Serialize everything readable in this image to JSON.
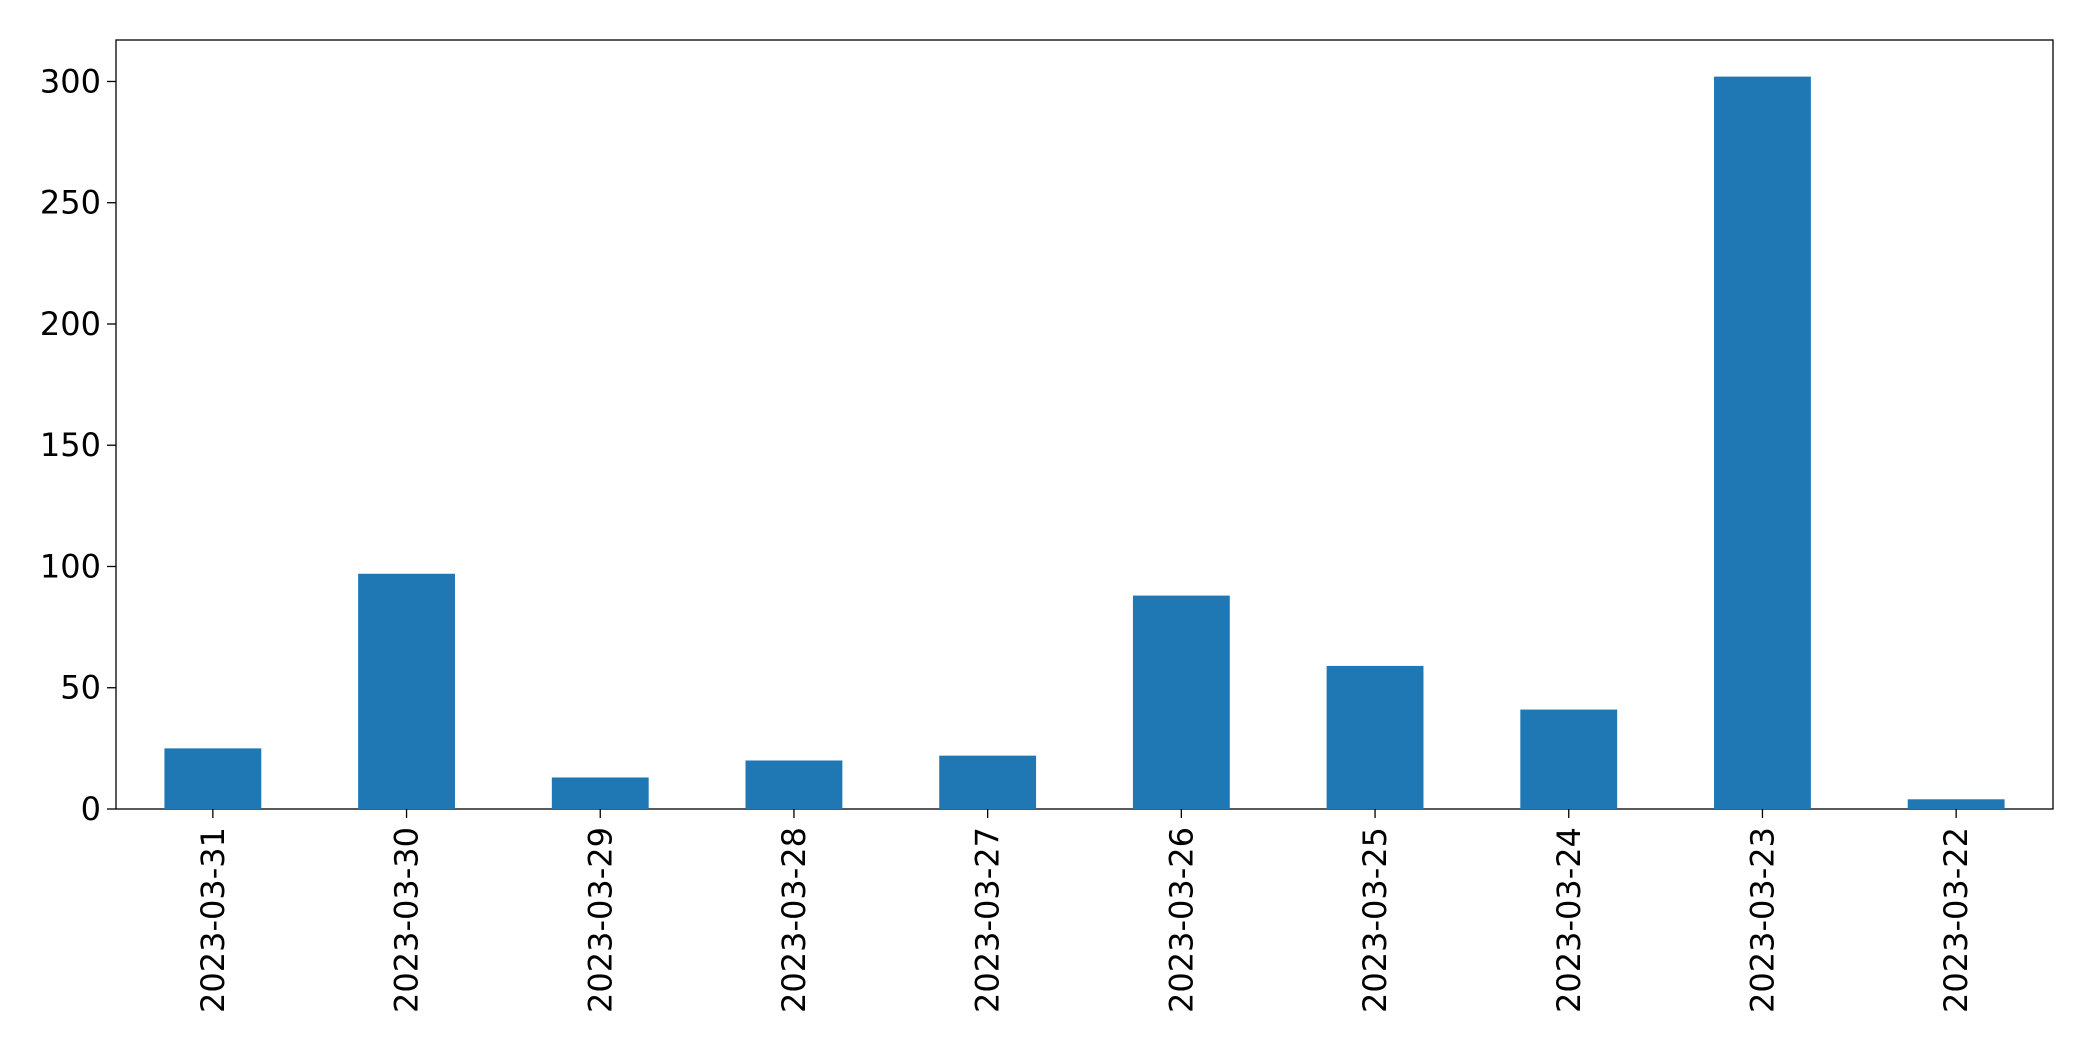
{
  "chart_data": {
    "type": "bar",
    "categories": [
      "2023-03-31",
      "2023-03-30",
      "2023-03-29",
      "2023-03-28",
      "2023-03-27",
      "2023-03-26",
      "2023-03-25",
      "2023-03-24",
      "2023-03-23",
      "2023-03-22"
    ],
    "values": [
      25,
      97,
      13,
      20,
      22,
      88,
      59,
      41,
      302,
      4
    ],
    "color": "#1f77b4",
    "ylim": [
      0,
      317.1
    ],
    "yticks": [
      0,
      50,
      100,
      150,
      200,
      250,
      300
    ],
    "grid": false
  }
}
